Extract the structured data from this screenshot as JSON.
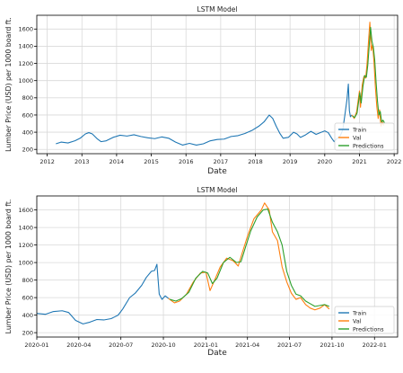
{
  "colors": {
    "train": "#1f77b4",
    "val": "#ff7f0e",
    "predictions": "#2ca02c",
    "grid": "#d9d9d9",
    "axis": "#000000"
  },
  "chart_data": [
    {
      "type": "line",
      "title": "LSTM Model",
      "xlabel": "Date",
      "ylabel": "Lumber Price (USD) per 1000 board ft.",
      "x_unit": "year",
      "xlim": [
        2011.7,
        2022.1
      ],
      "ylim": [
        150,
        1760
      ],
      "xticks": [
        2012,
        2013,
        2014,
        2015,
        2016,
        2017,
        2018,
        2019,
        2020,
        2021,
        2022
      ],
      "xtick_labels": [
        "2012",
        "2013",
        "2014",
        "2015",
        "2016",
        "2017",
        "2018",
        "2019",
        "2020",
        "2021",
        "2022"
      ],
      "yticks": [
        200,
        400,
        600,
        800,
        1000,
        1200,
        1400,
        1600
      ],
      "grid": true,
      "legend": {
        "position": "bottom-right",
        "entries": [
          "Train",
          "Val",
          "Predictions"
        ]
      },
      "series": [
        {
          "name": "Train",
          "color_key": "train",
          "points": [
            [
              2012.25,
              265
            ],
            [
              2012.4,
              285
            ],
            [
              2012.6,
              275
            ],
            [
              2012.8,
              300
            ],
            [
              2012.95,
              330
            ],
            [
              2013.1,
              380
            ],
            [
              2013.2,
              395
            ],
            [
              2013.3,
              380
            ],
            [
              2013.45,
              320
            ],
            [
              2013.55,
              290
            ],
            [
              2013.7,
              300
            ],
            [
              2013.9,
              340
            ],
            [
              2014.1,
              365
            ],
            [
              2014.3,
              355
            ],
            [
              2014.5,
              370
            ],
            [
              2014.7,
              350
            ],
            [
              2014.9,
              335
            ],
            [
              2015.1,
              325
            ],
            [
              2015.3,
              345
            ],
            [
              2015.5,
              330
            ],
            [
              2015.7,
              285
            ],
            [
              2015.9,
              250
            ],
            [
              2016.1,
              270
            ],
            [
              2016.3,
              250
            ],
            [
              2016.5,
              265
            ],
            [
              2016.7,
              300
            ],
            [
              2016.9,
              315
            ],
            [
              2017.1,
              320
            ],
            [
              2017.3,
              350
            ],
            [
              2017.5,
              360
            ],
            [
              2017.7,
              385
            ],
            [
              2017.9,
              420
            ],
            [
              2018.1,
              470
            ],
            [
              2018.25,
              520
            ],
            [
              2018.4,
              600
            ],
            [
              2018.5,
              560
            ],
            [
              2018.6,
              470
            ],
            [
              2018.7,
              390
            ],
            [
              2018.8,
              330
            ],
            [
              2018.95,
              340
            ],
            [
              2019.1,
              400
            ],
            [
              2019.2,
              380
            ],
            [
              2019.3,
              340
            ],
            [
              2019.45,
              370
            ],
            [
              2019.6,
              410
            ],
            [
              2019.75,
              375
            ],
            [
              2019.9,
              400
            ],
            [
              2020.0,
              415
            ],
            [
              2020.1,
              395
            ],
            [
              2020.2,
              330
            ],
            [
              2020.27,
              290
            ],
            [
              2020.35,
              325
            ],
            [
              2020.45,
              360
            ],
            [
              2020.52,
              430
            ],
            [
              2020.58,
              600
            ],
            [
              2020.64,
              780
            ],
            [
              2020.68,
              960
            ],
            [
              2020.71,
              650
            ],
            [
              2020.74,
              580
            ],
            [
              2020.78,
              600
            ]
          ]
        },
        {
          "name": "Val",
          "color_key": "val",
          "points": [
            [
              2020.78,
              600
            ],
            [
              2020.85,
              560
            ],
            [
              2020.92,
              640
            ],
            [
              2021.0,
              880
            ],
            [
              2021.03,
              690
            ],
            [
              2021.08,
              950
            ],
            [
              2021.13,
              1050
            ],
            [
              2021.18,
              1030
            ],
            [
              2021.22,
              1200
            ],
            [
              2021.26,
              1450
            ],
            [
              2021.3,
              1680
            ],
            [
              2021.34,
              1350
            ],
            [
              2021.38,
              1420
            ],
            [
              2021.42,
              1210
            ],
            [
              2021.46,
              920
            ],
            [
              2021.5,
              700
            ],
            [
              2021.54,
              560
            ],
            [
              2021.58,
              660
            ],
            [
              2021.62,
              470
            ],
            [
              2021.66,
              520
            ],
            [
              2021.7,
              480
            ]
          ]
        },
        {
          "name": "Predictions",
          "color_key": "predictions",
          "points": [
            [
              2020.8,
              590
            ],
            [
              2020.86,
              570
            ],
            [
              2020.93,
              620
            ],
            [
              2021.01,
              860
            ],
            [
              2021.05,
              740
            ],
            [
              2021.1,
              930
            ],
            [
              2021.15,
              1060
            ],
            [
              2021.2,
              1040
            ],
            [
              2021.24,
              1180
            ],
            [
              2021.28,
              1400
            ],
            [
              2021.32,
              1620
            ],
            [
              2021.36,
              1460
            ],
            [
              2021.4,
              1390
            ],
            [
              2021.44,
              1240
            ],
            [
              2021.48,
              980
            ],
            [
              2021.52,
              760
            ],
            [
              2021.56,
              600
            ],
            [
              2021.6,
              640
            ],
            [
              2021.64,
              520
            ],
            [
              2021.68,
              540
            ],
            [
              2021.72,
              510
            ]
          ]
        }
      ]
    },
    {
      "type": "line",
      "title": "LSTM Model",
      "xlabel": "Date",
      "ylabel": "Lumber Price (USD) per 1000 board ft.",
      "x_unit": "date",
      "xlim": [
        "2020-01-01",
        "2022-02-20"
      ],
      "ylim": [
        150,
        1760
      ],
      "xticks": [
        "2020-01-01",
        "2020-04-01",
        "2020-07-01",
        "2020-10-01",
        "2021-01-01",
        "2021-04-01",
        "2021-07-01",
        "2021-10-01",
        "2022-01-01"
      ],
      "xtick_labels": [
        "2020-01",
        "2020-04",
        "2020-07",
        "2020-10",
        "2021-01",
        "2021-04",
        "2021-07",
        "2021-10",
        "2022-01"
      ],
      "yticks": [
        200,
        400,
        600,
        800,
        1000,
        1200,
        1400,
        1600
      ],
      "grid": true,
      "legend": {
        "position": "bottom-right",
        "entries": [
          "Train",
          "Val",
          "Predictions"
        ]
      },
      "series": [
        {
          "name": "Train",
          "color_key": "train",
          "points": [
            [
              "2020-01-01",
              420
            ],
            [
              "2020-01-20",
              410
            ],
            [
              "2020-02-05",
              440
            ],
            [
              "2020-02-25",
              450
            ],
            [
              "2020-03-10",
              430
            ],
            [
              "2020-03-25",
              340
            ],
            [
              "2020-04-10",
              300
            ],
            [
              "2020-04-25",
              320
            ],
            [
              "2020-05-10",
              350
            ],
            [
              "2020-05-25",
              345
            ],
            [
              "2020-06-10",
              360
            ],
            [
              "2020-06-25",
              400
            ],
            [
              "2020-07-05",
              470
            ],
            [
              "2020-07-20",
              600
            ],
            [
              "2020-08-01",
              650
            ],
            [
              "2020-08-15",
              740
            ],
            [
              "2020-08-25",
              830
            ],
            [
              "2020-09-05",
              900
            ],
            [
              "2020-09-12",
              910
            ],
            [
              "2020-09-17",
              980
            ],
            [
              "2020-09-22",
              640
            ],
            [
              "2020-09-28",
              580
            ],
            [
              "2020-10-05",
              620
            ],
            [
              "2020-10-12",
              590
            ]
          ]
        },
        {
          "name": "Val",
          "color_key": "val",
          "points": [
            [
              "2020-10-12",
              590
            ],
            [
              "2020-10-25",
              540
            ],
            [
              "2020-11-05",
              560
            ],
            [
              "2020-11-20",
              640
            ],
            [
              "2020-12-05",
              780
            ],
            [
              "2020-12-20",
              880
            ],
            [
              "2021-01-01",
              890
            ],
            [
              "2021-01-10",
              680
            ],
            [
              "2021-01-20",
              800
            ],
            [
              "2021-02-01",
              950
            ],
            [
              "2021-02-15",
              1050
            ],
            [
              "2021-03-01",
              1020
            ],
            [
              "2021-03-12",
              960
            ],
            [
              "2021-03-20",
              1100
            ],
            [
              "2021-04-01",
              1300
            ],
            [
              "2021-04-15",
              1500
            ],
            [
              "2021-05-01",
              1600
            ],
            [
              "2021-05-08",
              1680
            ],
            [
              "2021-05-18",
              1600
            ],
            [
              "2021-05-25",
              1350
            ],
            [
              "2021-06-05",
              1250
            ],
            [
              "2021-06-15",
              950
            ],
            [
              "2021-06-25",
              780
            ],
            [
              "2021-07-05",
              650
            ],
            [
              "2021-07-15",
              580
            ],
            [
              "2021-07-25",
              600
            ],
            [
              "2021-08-05",
              520
            ],
            [
              "2021-08-15",
              480
            ],
            [
              "2021-08-25",
              460
            ],
            [
              "2021-09-05",
              480
            ],
            [
              "2021-09-15",
              520
            ],
            [
              "2021-09-25",
              470
            ]
          ]
        },
        {
          "name": "Predictions",
          "color_key": "predictions",
          "points": [
            [
              "2020-10-15",
              580
            ],
            [
              "2020-10-28",
              560
            ],
            [
              "2020-11-10",
              590
            ],
            [
              "2020-11-25",
              660
            ],
            [
              "2020-12-10",
              820
            ],
            [
              "2020-12-25",
              900
            ],
            [
              "2021-01-05",
              880
            ],
            [
              "2021-01-15",
              760
            ],
            [
              "2021-01-25",
              820
            ],
            [
              "2021-02-08",
              1000
            ],
            [
              "2021-02-22",
              1060
            ],
            [
              "2021-03-08",
              1000
            ],
            [
              "2021-03-18",
              1010
            ],
            [
              "2021-03-28",
              1180
            ],
            [
              "2021-04-08",
              1360
            ],
            [
              "2021-04-22",
              1520
            ],
            [
              "2021-05-05",
              1600
            ],
            [
              "2021-05-15",
              1610
            ],
            [
              "2021-05-25",
              1460
            ],
            [
              "2021-06-05",
              1350
            ],
            [
              "2021-06-15",
              1200
            ],
            [
              "2021-06-25",
              900
            ],
            [
              "2021-07-05",
              740
            ],
            [
              "2021-07-15",
              640
            ],
            [
              "2021-07-25",
              620
            ],
            [
              "2021-08-05",
              560
            ],
            [
              "2021-08-15",
              530
            ],
            [
              "2021-08-25",
              500
            ],
            [
              "2021-09-05",
              510
            ],
            [
              "2021-09-15",
              520
            ],
            [
              "2021-09-25",
              500
            ]
          ]
        }
      ]
    }
  ]
}
